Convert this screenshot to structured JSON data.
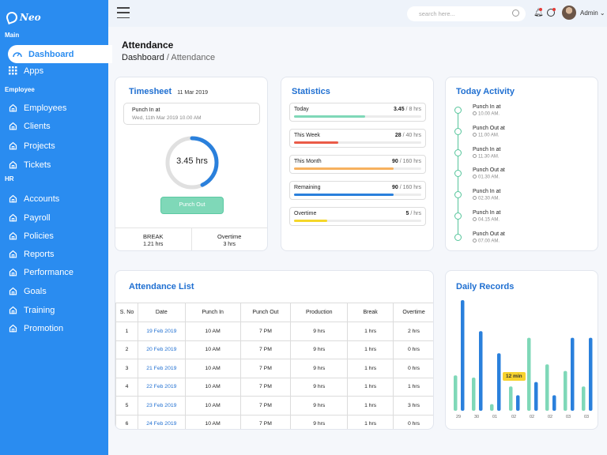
{
  "app": {
    "logo": "Neo"
  },
  "sidebar": {
    "sections": [
      {
        "title": "Main",
        "items": [
          {
            "label": "Dashboard",
            "icon": "dashboard-icon",
            "active": true
          },
          {
            "label": "Apps",
            "icon": "apps-grid-icon"
          }
        ]
      },
      {
        "title": "Employee",
        "items": [
          {
            "label": "Employees",
            "icon": "home-icon"
          },
          {
            "label": "Clients",
            "icon": "home-icon"
          },
          {
            "label": "Projects",
            "icon": "home-icon"
          },
          {
            "label": "Tickets",
            "icon": "home-icon"
          }
        ]
      },
      {
        "title": "HR",
        "items": [
          {
            "label": "Accounts",
            "icon": "home-icon"
          },
          {
            "label": "Payroll",
            "icon": "home-icon"
          },
          {
            "label": "Policies",
            "icon": "home-icon"
          },
          {
            "label": "Reports",
            "icon": "home-icon"
          },
          {
            "label": "Performance",
            "icon": "home-icon"
          },
          {
            "label": "Goals",
            "icon": "home-icon"
          },
          {
            "label": "Training",
            "icon": "home-icon"
          },
          {
            "label": "Promotion",
            "icon": "home-icon"
          }
        ]
      }
    ]
  },
  "topbar": {
    "search_placeholder": "search here...",
    "user": "Admin"
  },
  "header": {
    "title": "Attendance",
    "breadcrumb_root": "Dashboard",
    "breadcrumb_sep": "/",
    "breadcrumb_current": "Attendance"
  },
  "timesheet": {
    "title": "Timesheet",
    "date": "11 Mar 2019",
    "punch_label": "Punch In at",
    "punch_time": "Wed, 11th Mar 2019 10.00 AM",
    "hours": "3.45 hrs",
    "progress": 0.43,
    "button": "Punch Out",
    "break_label": "BREAK",
    "break_value": "1.21 hrs",
    "overtime_label": "Overtime",
    "overtime_value": "3 hrs"
  },
  "statistics": {
    "title": "Statistics",
    "items": [
      {
        "label": "Today",
        "value": "3.45",
        "total": "8 hrs",
        "progress": 0.56,
        "color": "#7fd8b8"
      },
      {
        "label": "This Week",
        "value": "28",
        "total": "40 hrs",
        "progress": 0.35,
        "color": "#ea5b48"
      },
      {
        "label": "This Month",
        "value": "90",
        "total": "160 hrs",
        "progress": 0.78,
        "color": "#f7b15e"
      },
      {
        "label": "Remaining",
        "value": "90",
        "total": "160 hrs",
        "progress": 0.78,
        "color": "#2a80dc"
      },
      {
        "label": "Overtime",
        "value": "5",
        "total": "hrs",
        "progress": 0.26,
        "color": "#f5d72a"
      }
    ]
  },
  "activity": {
    "title": "Today Activity",
    "items": [
      {
        "title": "Punch In at",
        "time": "10.00 AM."
      },
      {
        "title": "Punch Out at",
        "time": "11.00 AM."
      },
      {
        "title": "Punch In at",
        "time": "11.30 AM."
      },
      {
        "title": "Punch Out at",
        "time": "01.30 AM."
      },
      {
        "title": "Punch In at",
        "time": "02.30 AM."
      },
      {
        "title": "Punch In at",
        "time": "04.15 AM."
      },
      {
        "title": "Punch Out at",
        "time": "07.00 AM."
      }
    ]
  },
  "attendance_list": {
    "title": "Attendance List",
    "columns": [
      "S. No",
      "Date",
      "Punch In",
      "Punch Out",
      "Production",
      "Break",
      "Overtime"
    ],
    "rows": [
      [
        "1",
        "19 Feb 2019",
        "10 AM",
        "7 PM",
        "9 hrs",
        "1 hrs",
        "2 hrs"
      ],
      [
        "2",
        "20 Feb 2019",
        "10 AM",
        "7 PM",
        "9 hrs",
        "1 hrs",
        "0 hrs"
      ],
      [
        "3",
        "21 Feb 2019",
        "10 AM",
        "7 PM",
        "9 hrs",
        "1 hrs",
        "0 hrs"
      ],
      [
        "4",
        "22 Feb 2019",
        "10 AM",
        "7 PM",
        "9 hrs",
        "1 hrs",
        "1 hrs"
      ],
      [
        "5",
        "23 Feb 2019",
        "10 AM",
        "7 PM",
        "9 hrs",
        "1 hrs",
        "3 hrs"
      ],
      [
        "6",
        "24 Feb 2019",
        "10 AM",
        "7 PM",
        "9 hrs",
        "1 hrs",
        "0 hrs"
      ]
    ]
  },
  "daily_records": {
    "title": "Daily Records",
    "tooltip": "12 min"
  },
  "chart_data": {
    "type": "bar",
    "categories": [
      "29",
      "30",
      "01",
      "02",
      "02",
      "02",
      "03",
      "03"
    ],
    "series": [
      {
        "values": [
          32,
          30,
          6,
          22,
          66,
          42,
          36,
          22
        ],
        "color": "#7fd8b8"
      },
      {
        "values": [
          100,
          72,
          52,
          14,
          26,
          14,
          66,
          66
        ],
        "color": "#2a80dc"
      }
    ],
    "ylim": [
      0,
      100
    ]
  }
}
